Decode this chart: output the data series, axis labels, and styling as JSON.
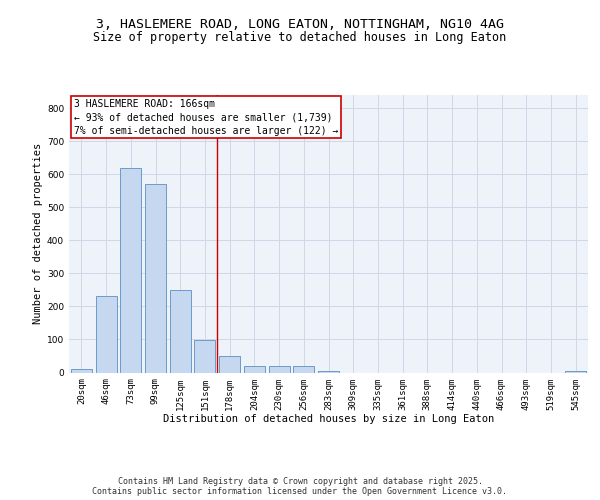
{
  "title_line1": "3, HASLEMERE ROAD, LONG EATON, NOTTINGHAM, NG10 4AG",
  "title_line2": "Size of property relative to detached houses in Long Eaton",
  "xlabel": "Distribution of detached houses by size in Long Eaton",
  "ylabel": "Number of detached properties",
  "categories": [
    "20sqm",
    "46sqm",
    "73sqm",
    "99sqm",
    "125sqm",
    "151sqm",
    "178sqm",
    "204sqm",
    "230sqm",
    "256sqm",
    "283sqm",
    "309sqm",
    "335sqm",
    "361sqm",
    "388sqm",
    "414sqm",
    "440sqm",
    "466sqm",
    "493sqm",
    "519sqm",
    "545sqm"
  ],
  "values": [
    10,
    232,
    618,
    570,
    250,
    98,
    50,
    20,
    20,
    20,
    5,
    0,
    0,
    0,
    0,
    0,
    0,
    0,
    0,
    0,
    5
  ],
  "bar_color": "#c5d8f0",
  "bar_edge_color": "#5a8fc4",
  "grid_color": "#d0d8e8",
  "background_color": "#eef2f9",
  "vline_x_index": 5.5,
  "vline_color": "#cc0000",
  "annotation_text": "3 HASLEMERE ROAD: 166sqm\n← 93% of detached houses are smaller (1,739)\n7% of semi-detached houses are larger (122) →",
  "annotation_box_color": "#ffffff",
  "annotation_box_edge": "#cc0000",
  "ylim": [
    0,
    840
  ],
  "yticks": [
    0,
    100,
    200,
    300,
    400,
    500,
    600,
    700,
    800
  ],
  "footer_line1": "Contains HM Land Registry data © Crown copyright and database right 2025.",
  "footer_line2": "Contains public sector information licensed under the Open Government Licence v3.0.",
  "title_fontsize": 9.5,
  "subtitle_fontsize": 8.5,
  "axis_label_fontsize": 7.5,
  "tick_fontsize": 6.5,
  "annotation_fontsize": 7,
  "footer_fontsize": 6
}
